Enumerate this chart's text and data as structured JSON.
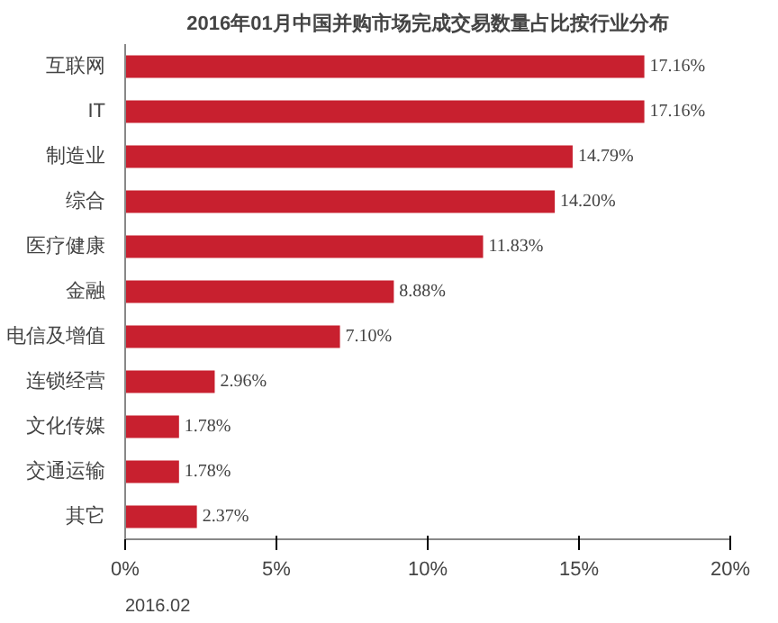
{
  "chart_data": {
    "type": "bar",
    "orientation": "horizontal",
    "title": "2016年01月中国并购市场完成交易数量占比按行业分布",
    "categories": [
      "互联网",
      "IT",
      "制造业",
      "综合",
      "医疗健康",
      "金融",
      "电信及增值",
      "连锁经营",
      "文化传媒",
      "交通运输",
      "其它"
    ],
    "values": [
      17.16,
      17.16,
      14.79,
      14.2,
      11.83,
      8.88,
      7.1,
      2.96,
      1.78,
      1.78,
      2.37
    ],
    "value_labels": [
      "17.16%",
      "17.16%",
      "14.79%",
      "14.20%",
      "11.83%",
      "8.88%",
      "7.10%",
      "2.96%",
      "1.78%",
      "1.78%",
      "2.37%"
    ],
    "color": "#c8202f",
    "xlim": [
      0,
      20
    ],
    "xticks": [
      {
        "value": 0,
        "label": "0%"
      },
      {
        "value": 5,
        "label": "5%"
      },
      {
        "value": 10,
        "label": "10%"
      },
      {
        "value": 15,
        "label": "15%"
      },
      {
        "value": 20,
        "label": "20%"
      }
    ],
    "grid": false,
    "annotations": [
      "2016.02"
    ]
  }
}
